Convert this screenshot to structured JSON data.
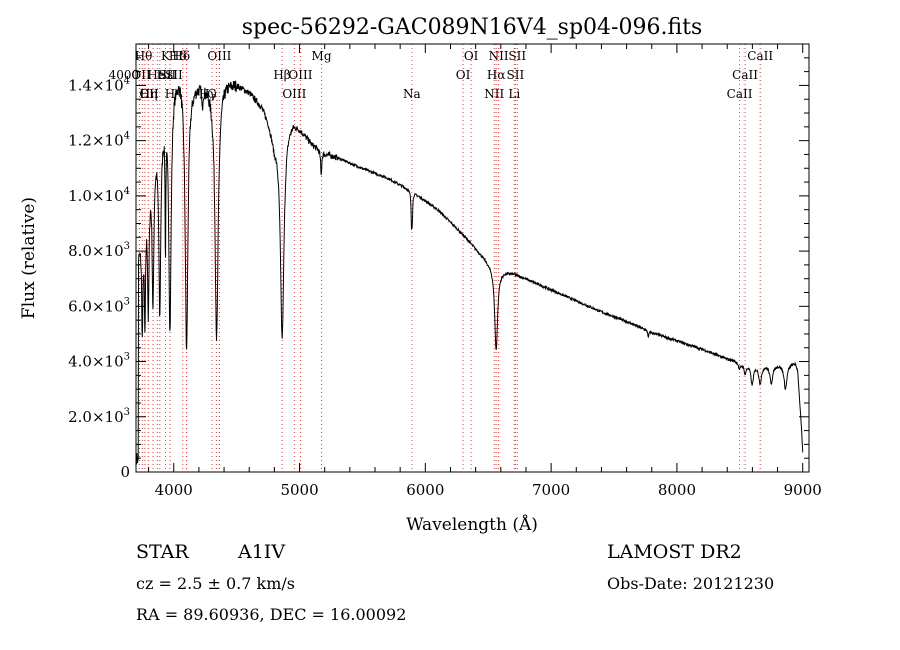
{
  "chart_data": {
    "type": "line",
    "title": "spec-56292-GAC089N16V4_sp04-096.fits",
    "xlabel": "Wavelength (Å)",
    "ylabel": "Flux (relative)",
    "xlim": [
      3700,
      9050
    ],
    "ylim": [
      0,
      15500
    ],
    "grid": false,
    "x_ticks": [
      {
        "value": 4000,
        "label": "4000"
      },
      {
        "value": 5000,
        "label": "5000"
      },
      {
        "value": 6000,
        "label": "6000"
      },
      {
        "value": 7000,
        "label": "7000"
      },
      {
        "value": 8000,
        "label": "8000"
      },
      {
        "value": 9000,
        "label": "9000"
      }
    ],
    "y_ticks": [
      {
        "value": 0,
        "mantissa": "0",
        "exp": ""
      },
      {
        "value": 2000,
        "mantissa": "2.0×10",
        "exp": "3"
      },
      {
        "value": 4000,
        "mantissa": "4.0×10",
        "exp": "3"
      },
      {
        "value": 6000,
        "mantissa": "6.0×10",
        "exp": "3"
      },
      {
        "value": 8000,
        "mantissa": "8.0×10",
        "exp": "3"
      },
      {
        "value": 10000,
        "mantissa": "1.0×10",
        "exp": "4"
      },
      {
        "value": 12000,
        "mantissa": "1.2×10",
        "exp": "4"
      },
      {
        "value": 14000,
        "mantissa": "1.4×10",
        "exp": "4"
      }
    ],
    "series": [
      {
        "continuum": [
          [
            3720,
            8000
          ],
          [
            3760,
            9500
          ],
          [
            3800,
            10800
          ],
          [
            3850,
            11800
          ],
          [
            3900,
            12600
          ],
          [
            3950,
            13500
          ],
          [
            4000,
            14300
          ],
          [
            4050,
            14600
          ],
          [
            4100,
            14300
          ],
          [
            4150,
            14100
          ],
          [
            4200,
            14150
          ],
          [
            4300,
            14000
          ],
          [
            4400,
            14200
          ],
          [
            4500,
            14100
          ],
          [
            4600,
            13800
          ],
          [
            4700,
            13300
          ],
          [
            4750,
            12800
          ],
          [
            4800,
            12000
          ],
          [
            4850,
            12400
          ],
          [
            4900,
            12700
          ],
          [
            4950,
            12750
          ],
          [
            5000,
            12500
          ],
          [
            5100,
            11900
          ],
          [
            5200,
            11550
          ],
          [
            5300,
            11400
          ],
          [
            5500,
            11000
          ],
          [
            5700,
            10650
          ],
          [
            5900,
            10150
          ],
          [
            6100,
            9500
          ],
          [
            6300,
            8600
          ],
          [
            6400,
            8100
          ],
          [
            6500,
            7600
          ],
          [
            6600,
            7300
          ],
          [
            6700,
            7200
          ],
          [
            6800,
            7000
          ],
          [
            7000,
            6600
          ],
          [
            7200,
            6200
          ],
          [
            7400,
            5800
          ],
          [
            7600,
            5450
          ],
          [
            7800,
            5050
          ],
          [
            8000,
            4750
          ],
          [
            8200,
            4450
          ],
          [
            8400,
            4100
          ],
          [
            8600,
            3900
          ],
          [
            8800,
            3900
          ],
          [
            8940,
            3950
          ],
          [
            8960,
            3700
          ],
          [
            8990,
            1600
          ],
          [
            9000,
            700
          ]
        ],
        "absorption_lines": [
          {
            "center": 3750,
            "depth": 3800,
            "width": 6
          },
          {
            "center": 3771,
            "depth": 4200,
            "width": 6
          },
          {
            "center": 3798,
            "depth": 4600,
            "width": 7
          },
          {
            "center": 3835,
            "depth": 5200,
            "width": 8
          },
          {
            "center": 3889,
            "depth": 6500,
            "width": 9
          },
          {
            "center": 3934,
            "depth": 4800,
            "width": 3
          },
          {
            "center": 3970,
            "depth": 8500,
            "width": 11
          },
          {
            "center": 4102,
            "depth": 9800,
            "width": 13
          },
          {
            "center": 4227,
            "depth": 800,
            "width": 4
          },
          {
            "center": 4341,
            "depth": 9200,
            "width": 15
          },
          {
            "center": 4862,
            "depth": 7600,
            "width": 17
          },
          {
            "center": 5172,
            "depth": 900,
            "width": 5
          },
          {
            "center": 5890,
            "depth": 1100,
            "width": 4
          },
          {
            "center": 5896,
            "depth": 900,
            "width": 4
          },
          {
            "center": 6563,
            "depth": 3000,
            "width": 14
          },
          {
            "center": 7773,
            "depth": 250,
            "width": 4
          },
          {
            "center": 8498,
            "depth": 250,
            "width": 10
          },
          {
            "center": 8542,
            "depth": 350,
            "width": 12
          },
          {
            "center": 8598,
            "depth": 700,
            "width": 12
          },
          {
            "center": 8662,
            "depth": 650,
            "width": 14
          },
          {
            "center": 8750,
            "depth": 650,
            "width": 14
          },
          {
            "center": 8863,
            "depth": 900,
            "width": 14
          }
        ]
      }
    ],
    "lines": [
      {
        "wl": 3727,
        "text": "OII",
        "row": 2,
        "anchor": "start"
      },
      {
        "wl": 3750,
        "text": "",
        "row": 0,
        "anchor": "middle"
      },
      {
        "wl": 3771,
        "text": "",
        "row": 0,
        "anchor": "middle"
      },
      {
        "wl": 3798,
        "text": "",
        "row": 0,
        "anchor": "middle"
      },
      {
        "wl": 3835,
        "text": "",
        "row": 0,
        "anchor": "middle"
      },
      {
        "wl": 3869,
        "text": "",
        "row": 0,
        "anchor": "middle"
      },
      {
        "wl": 3889,
        "text": "",
        "row": 0,
        "anchor": "middle"
      },
      {
        "wl": 3934,
        "text": "K",
        "row": 0,
        "anchor": "middle"
      },
      {
        "wl": 3970,
        "text": "H",
        "row": 2,
        "anchor": "middle"
      },
      {
        "wl": 4102,
        "text": "Hδ",
        "row": 0,
        "anchor": "end"
      },
      {
        "wl": 4072,
        "text": "SII",
        "row": 1,
        "anchor": "end"
      },
      {
        "wl": 4341,
        "text": "Hγ",
        "row": 2,
        "anchor": "end"
      },
      {
        "wl": 4363,
        "text": "OIII",
        "row": 0,
        "anchor": "middle"
      },
      {
        "wl": 4861,
        "text": "Hβ",
        "row": 1,
        "anchor": "middle"
      },
      {
        "wl": 4304,
        "text": "G",
        "row": 2,
        "anchor": "middle"
      },
      {
        "wl": 4959,
        "text": "OIII",
        "row": 2,
        "anchor": "middle"
      },
      {
        "wl": 5007,
        "text": "OIII",
        "row": 1,
        "anchor": "middle"
      },
      {
        "wl": 5175,
        "text": "Mg",
        "row": 0,
        "anchor": "middle"
      },
      {
        "wl": 5893,
        "text": "Na",
        "row": 2,
        "anchor": "middle"
      },
      {
        "wl": 6300,
        "text": "OI",
        "row": 1,
        "anchor": "middle"
      },
      {
        "wl": 6364,
        "text": "OI",
        "row": 0,
        "anchor": "middle"
      },
      {
        "wl": 6548,
        "text": "NII",
        "row": 2,
        "anchor": "middle"
      },
      {
        "wl": 6563,
        "text": "Hα",
        "row": 1,
        "anchor": "middle"
      },
      {
        "wl": 6583,
        "text": "NII",
        "row": 0,
        "anchor": "middle"
      },
      {
        "wl": 6707,
        "text": "Li",
        "row": 2,
        "anchor": "middle"
      },
      {
        "wl": 6716,
        "text": "SII",
        "row": 1,
        "anchor": "middle"
      },
      {
        "wl": 6731,
        "text": "SII",
        "row": 0,
        "anchor": "middle"
      },
      {
        "wl": 8498,
        "text": "CaII",
        "row": 2,
        "anchor": "middle"
      },
      {
        "wl": 8542,
        "text": "CaII",
        "row": 1,
        "anchor": "middle"
      },
      {
        "wl": 8662,
        "text": "CaII",
        "row": 0,
        "anchor": "middle"
      }
    ],
    "crowded_labels": [
      {
        "text": "Hθ",
        "wl": 3760,
        "row": 0
      },
      {
        "text": "Hη",
        "wl": 3800,
        "row": 2
      },
      {
        "text": "OII",
        "wl": 3740,
        "row": 1
      },
      {
        "text": "He",
        "wl": 3860,
        "row": 1
      },
      {
        "text": "Hε",
        "wl": 3930,
        "row": 1
      },
      {
        "text": "SII",
        "wl": 3950,
        "row": 1
      },
      {
        "text": "Hδ",
        "wl": 4060,
        "row": 0
      }
    ],
    "offset_labels": [
      {
        "text": "4000",
        "left_of_wl": 3725,
        "row": 1
      }
    ],
    "tick_spacing": {
      "x_minor": 200
    }
  },
  "info": {
    "object_class": "STAR",
    "subclass": "A1IV",
    "survey": "LAMOST DR2",
    "redshift": "cz = 2.5 ± 0.7 km/s",
    "obs_date": "Obs-Date: 20121230",
    "coords": "RA =  89.60936, DEC =  16.00092"
  }
}
